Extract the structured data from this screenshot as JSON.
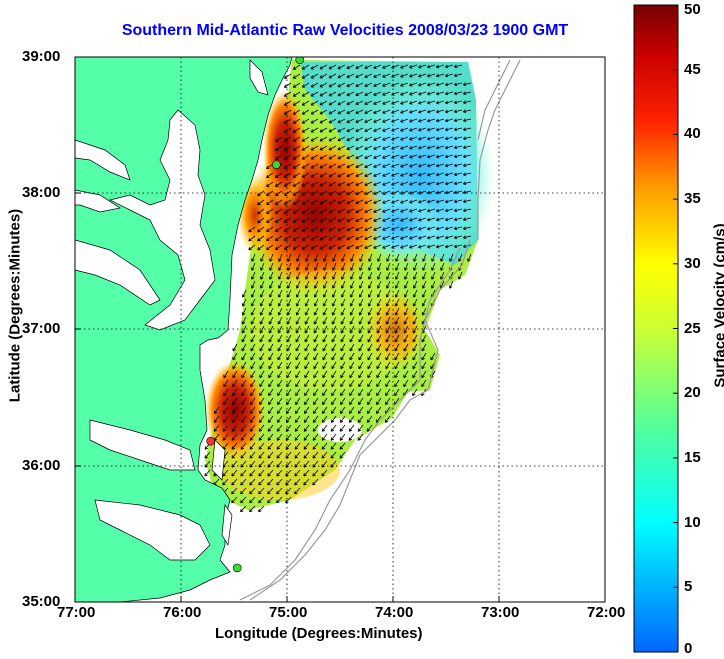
{
  "title": "Southern Mid-Atlantic Raw Velocities 2008/03/23 1900 GMT",
  "xlabel": "Longitude (Degrees:Minutes)",
  "ylabel": "Latitude (Degrees:Minutes)",
  "colorbar": {
    "label": "Surface Velocity (cm/s)",
    "ticks": [
      "0",
      "5",
      "10",
      "15",
      "20",
      "25",
      "30",
      "35",
      "40",
      "45",
      "50"
    ],
    "range": [
      0,
      50
    ]
  },
  "map": {
    "lon_range": [
      -77,
      -72
    ],
    "lat_range": [
      35,
      39
    ],
    "x_ticks": [
      "77:00",
      "76:00",
      "75:00",
      "74:00",
      "73:00",
      "72:00"
    ],
    "y_ticks": [
      "39:00",
      "38:00",
      "37:00",
      "36:00",
      "35:00"
    ],
    "grid": "dotted",
    "land_color": "#55ffaa",
    "stations": [
      {
        "lon": -74.88,
        "lat": 38.98
      },
      {
        "lon": -75.1,
        "lat": 38.21
      },
      {
        "lon": -75.72,
        "lat": 36.18
      },
      {
        "lon": -75.47,
        "lat": 35.25
      }
    ]
  }
}
